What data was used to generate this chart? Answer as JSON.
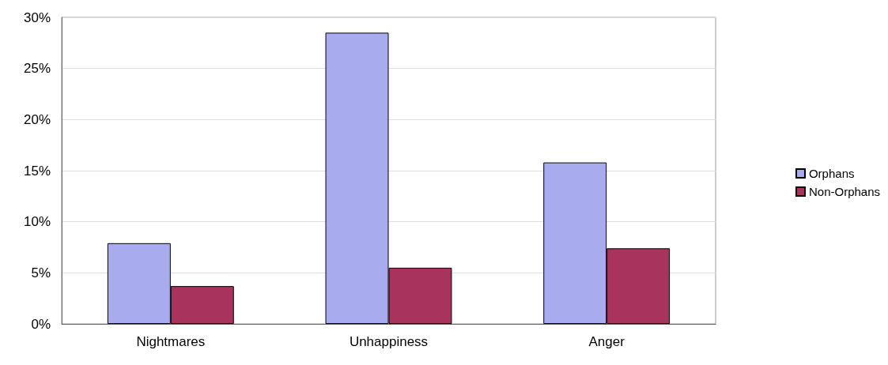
{
  "chart_data": {
    "type": "bar",
    "categories": [
      "Nightmares",
      "Unhappiness",
      "Anger"
    ],
    "series": [
      {
        "name": "Orphans",
        "color": "#a9abef",
        "values": [
          7.9,
          28.5,
          15.8
        ]
      },
      {
        "name": "Non-Orphans",
        "color": "#a8345e",
        "values": [
          3.7,
          5.5,
          7.4
        ]
      }
    ],
    "ylim": [
      0,
      30
    ],
    "yticks": [
      {
        "value": 0,
        "label": "0%"
      },
      {
        "value": 5,
        "label": "5%"
      },
      {
        "value": 10,
        "label": "10%"
      },
      {
        "value": 15,
        "label": "15%"
      },
      {
        "value": 20,
        "label": "20%"
      },
      {
        "value": 25,
        "label": "25%"
      },
      {
        "value": 30,
        "label": "30%"
      }
    ],
    "grid": "y",
    "legend": "right"
  }
}
